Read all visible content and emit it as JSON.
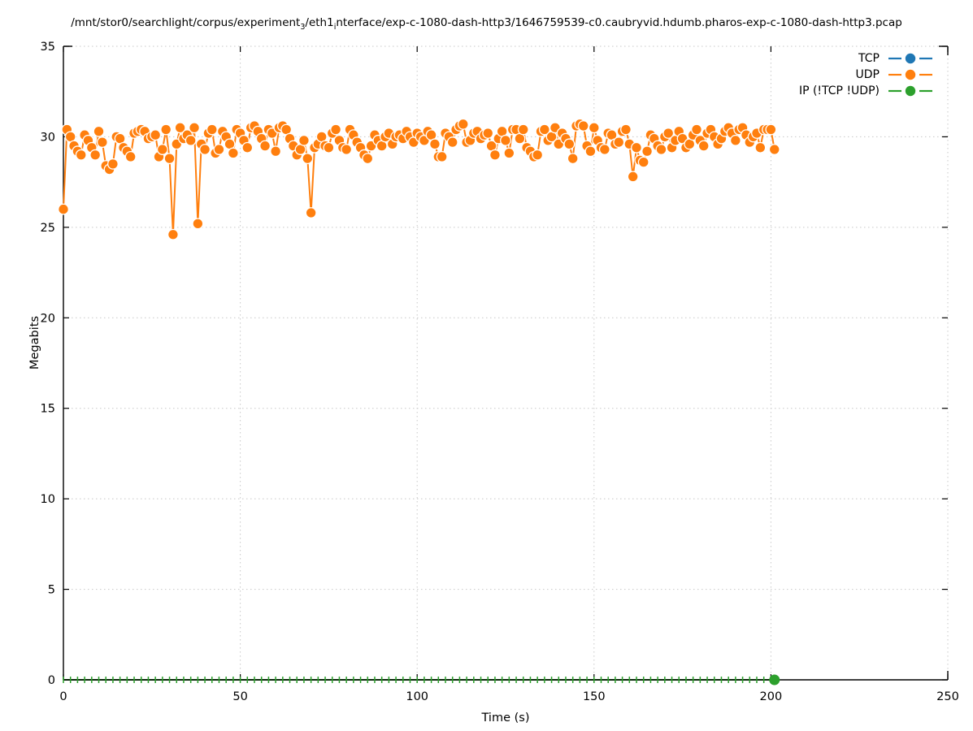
{
  "title": {
    "part1": "/mnt/stor0/searchlight/corpus/experiment",
    "sub1": "3",
    "part2": "/eth1",
    "sub2": "i",
    "part3": "nterface/exp-c-1080-dash-http3/1646759539-c0.caubryvid.hdumb.pharos-exp-c-1080-dash-http3.pcap"
  },
  "legend": {
    "items": [
      {
        "label": "TCP",
        "color": "#1f77b4"
      },
      {
        "label": "UDP",
        "color": "#ff7f0e"
      },
      {
        "label": "IP (!TCP  !UDP)",
        "color": "#2ca02c"
      }
    ]
  },
  "colors": {
    "tcp_blue": "#1f77b4",
    "udp_orange": "#ff7f0e",
    "ip_green": "#2ca02c",
    "grid_gray": "#c8c8c8",
    "axis_black": "#000000"
  },
  "chart_data": {
    "type": "line",
    "title": "/mnt/stor0/searchlight/corpus/experiment_3/eth1_interface/exp-c-1080-dash-http3/1646759539-c0.caubryvid.hdumb.pharos-exp-c-1080-dash-http3.pcap",
    "xlabel": "Time (s)",
    "ylabel": "Megabits",
    "xlim": [
      0,
      250
    ],
    "ylim": [
      0,
      35
    ],
    "xticks": [
      0,
      50,
      100,
      150,
      200,
      250
    ],
    "yticks": [
      0,
      5,
      10,
      15,
      20,
      25,
      30,
      35
    ],
    "grid": true,
    "legend_position": "top-right",
    "series": [
      {
        "name": "TCP",
        "color": "#1f77b4",
        "marker": "circle",
        "note_visible_points": 0,
        "x": [],
        "y": []
      },
      {
        "name": "UDP",
        "color": "#ff7f0e",
        "marker": "circle",
        "x_start": 0,
        "x_step": 1,
        "y": [
          26.0,
          30.4,
          30.0,
          29.5,
          29.2,
          29.0,
          30.1,
          29.8,
          29.4,
          29.0,
          30.3,
          29.7,
          28.4,
          28.2,
          28.5,
          30.0,
          29.9,
          29.4,
          29.2,
          28.9,
          30.2,
          30.3,
          30.4,
          30.3,
          29.9,
          30.0,
          30.1,
          28.9,
          29.3,
          30.4,
          28.8,
          24.6,
          29.6,
          30.5,
          29.9,
          30.1,
          29.8,
          30.5,
          25.2,
          29.6,
          29.3,
          30.2,
          30.4,
          29.1,
          29.3,
          30.3,
          30.0,
          29.6,
          29.1,
          30.4,
          30.2,
          29.8,
          29.4,
          30.5,
          30.6,
          30.3,
          29.9,
          29.5,
          30.4,
          30.2,
          29.2,
          30.5,
          30.6,
          30.4,
          29.9,
          29.5,
          29.0,
          29.3,
          29.8,
          28.8,
          25.8,
          29.4,
          29.6,
          30.0,
          29.5,
          29.4,
          30.2,
          30.4,
          29.8,
          29.4,
          29.3,
          30.4,
          30.1,
          29.7,
          29.4,
          29.0,
          28.8,
          29.5,
          30.1,
          29.8,
          29.5,
          30.0,
          30.2,
          29.6,
          30.0,
          30.1,
          29.9,
          30.3,
          30.0,
          29.7,
          30.2,
          30.0,
          29.8,
          30.3,
          30.1,
          29.6,
          28.9,
          28.9,
          30.2,
          30.0,
          29.7,
          30.4,
          30.6,
          30.7,
          29.7,
          29.8,
          30.2,
          30.3,
          29.9,
          30.1,
          30.2,
          29.5,
          29.0,
          29.9,
          30.3,
          29.8,
          29.1,
          30.4,
          30.4,
          29.9,
          30.4,
          29.4,
          29.2,
          28.9,
          29.0,
          30.3,
          30.4,
          29.8,
          30.0,
          30.5,
          29.6,
          30.2,
          29.9,
          29.6,
          28.8,
          30.6,
          30.7,
          30.6,
          29.5,
          29.2,
          30.5,
          29.8,
          29.4,
          29.3,
          30.2,
          30.1,
          29.6,
          29.7,
          30.3,
          30.4,
          29.6,
          27.8,
          29.4,
          28.7,
          28.6,
          29.2,
          30.1,
          29.9,
          29.5,
          29.3,
          30.0,
          30.2,
          29.4,
          29.8,
          30.3,
          29.9,
          29.4,
          29.6,
          30.1,
          30.4,
          29.8,
          29.5,
          30.2,
          30.4,
          30.0,
          29.6,
          29.9,
          30.3,
          30.5,
          30.2,
          29.8,
          30.4,
          30.5,
          30.1,
          29.7,
          30.0,
          30.2,
          29.4,
          30.4,
          30.4,
          30.4,
          29.3
        ]
      },
      {
        "name": "IP (!TCP  !UDP)",
        "color": "#2ca02c",
        "marker": "tick-dashes-with-end-dot",
        "y_value": 0,
        "x_start": 0,
        "x_end": 201,
        "marker_every": 2
      }
    ]
  }
}
